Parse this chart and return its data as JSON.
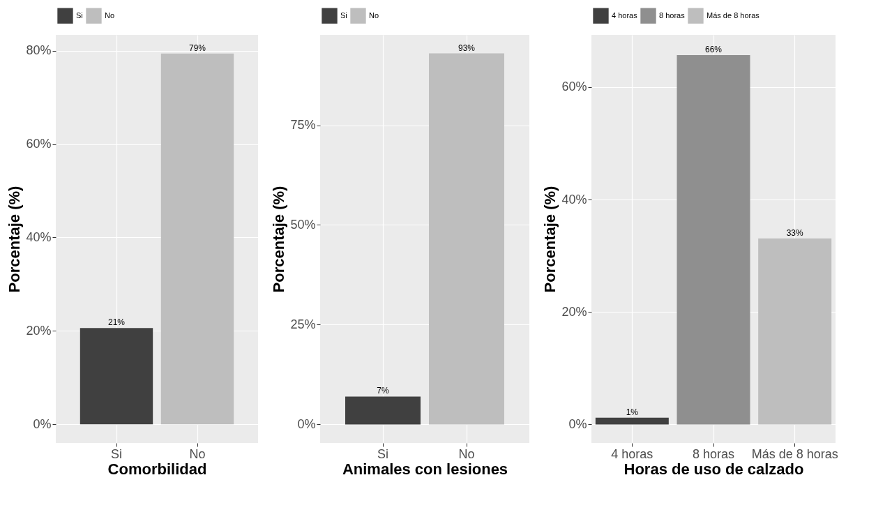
{
  "chart_data": [
    {
      "type": "bar",
      "categories": [
        "Si",
        "No"
      ],
      "series": [
        {
          "name": "Si",
          "color": "#404040",
          "values": [
            20.6,
            null
          ],
          "value_labels": [
            "21%",
            null
          ]
        },
        {
          "name": "No",
          "color": "#bebebe",
          "values": [
            null,
            79.4
          ],
          "value_labels": [
            null,
            "79%"
          ]
        }
      ],
      "xlabel": "Comorbilidad",
      "ylabel": "Porcentaje (%)",
      "ylim": [
        -4,
        83.4
      ],
      "yticks": [
        {
          "value": 0,
          "label": "0%"
        },
        {
          "value": 20,
          "label": "20%"
        },
        {
          "value": 40,
          "label": "40%"
        },
        {
          "value": 60,
          "label": "60%"
        },
        {
          "value": 80,
          "label": "80%"
        }
      ],
      "grid": true,
      "legend": "top"
    },
    {
      "type": "bar",
      "categories": [
        "Si",
        "No"
      ],
      "series": [
        {
          "name": "Si",
          "color": "#404040",
          "values": [
            7,
            null
          ],
          "value_labels": [
            "7%",
            null
          ]
        },
        {
          "name": "No",
          "color": "#bebebe",
          "values": [
            null,
            93
          ],
          "value_labels": [
            null,
            "93%"
          ]
        }
      ],
      "xlabel": "Animales con lesiones",
      "ylabel": "Porcentaje (%)",
      "ylim": [
        -4.65,
        97.65
      ],
      "yticks": [
        {
          "value": 0,
          "label": "0%"
        },
        {
          "value": 25,
          "label": "25%"
        },
        {
          "value": 50,
          "label": "50%"
        },
        {
          "value": 75,
          "label": "75%"
        }
      ],
      "grid": true,
      "legend": "top"
    },
    {
      "type": "bar",
      "categories": [
        "4 horas",
        "8 horas",
        "Más de 8 horas"
      ],
      "series": [
        {
          "name": "4 horas",
          "color": "#404040",
          "values": [
            1.2,
            null,
            null
          ],
          "value_labels": [
            "1%",
            null,
            null
          ]
        },
        {
          "name": "8 horas",
          "color": "#8f8f8f",
          "values": [
            null,
            65.7,
            null
          ],
          "value_labels": [
            null,
            "66%",
            null
          ]
        },
        {
          "name": "Más de 8 horas",
          "color": "#bebebe",
          "values": [
            null,
            null,
            33.1
          ],
          "value_labels": [
            null,
            null,
            "33%"
          ]
        }
      ],
      "xlabel": "Horas de uso de calzado",
      "ylabel": "Porcentaje (%)",
      "ylim": [
        -3.3,
        69.3
      ],
      "yticks": [
        {
          "value": 0,
          "label": "0%"
        },
        {
          "value": 20,
          "label": "20%"
        },
        {
          "value": 40,
          "label": "40%"
        },
        {
          "value": 60,
          "label": "60%"
        }
      ],
      "grid": true,
      "legend": "top"
    }
  ]
}
